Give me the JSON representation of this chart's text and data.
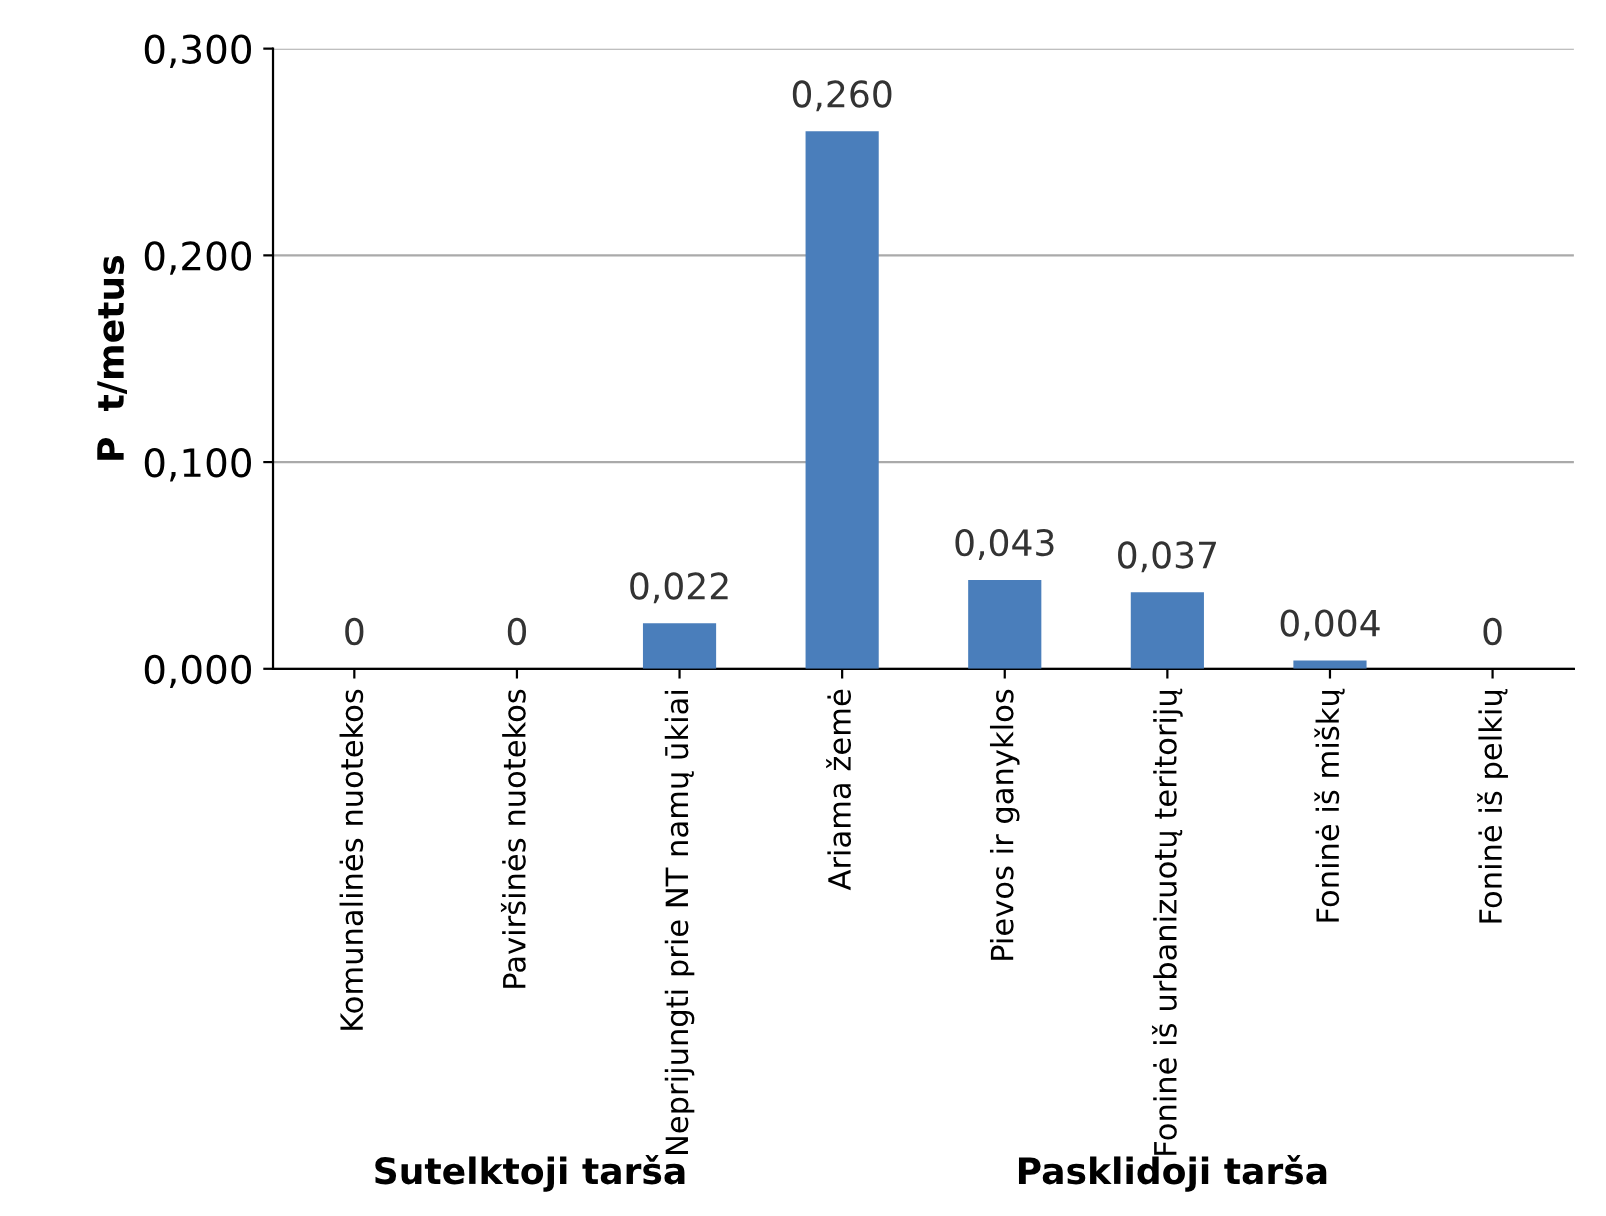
{
  "chart_data": {
    "type": "bar",
    "ylabel": "P  t/metus",
    "categories": [
      "Komunalinės nuotekos",
      "Paviršinės nuotekos",
      "Neprijungti prie NT namų ūkiai",
      "Ariama žemė",
      "Pievos ir ganyklos",
      "Foninė iš urbanizuotų teritorijų",
      "Foninė iš miškų",
      "Foninė iš pelkių"
    ],
    "values": [
      0,
      0,
      0.022,
      0.26,
      0.043,
      0.037,
      0.004,
      0
    ],
    "value_labels": [
      "0",
      "0",
      "0,022",
      "0,260",
      "0,043",
      "0,037",
      "0,004",
      "0"
    ],
    "color": "#4a7ebb",
    "ylim": [
      0,
      0.3
    ],
    "yticks": [
      {
        "value": 0,
        "label": "0,000"
      },
      {
        "value": 0.1,
        "label": "0,100"
      },
      {
        "value": 0.2,
        "label": "0,200"
      },
      {
        "value": 0.3,
        "label": "0,300"
      }
    ],
    "grid": "y",
    "annotations": [
      "Sutelktoji tarša",
      "Pasklidoji tarša"
    ]
  }
}
